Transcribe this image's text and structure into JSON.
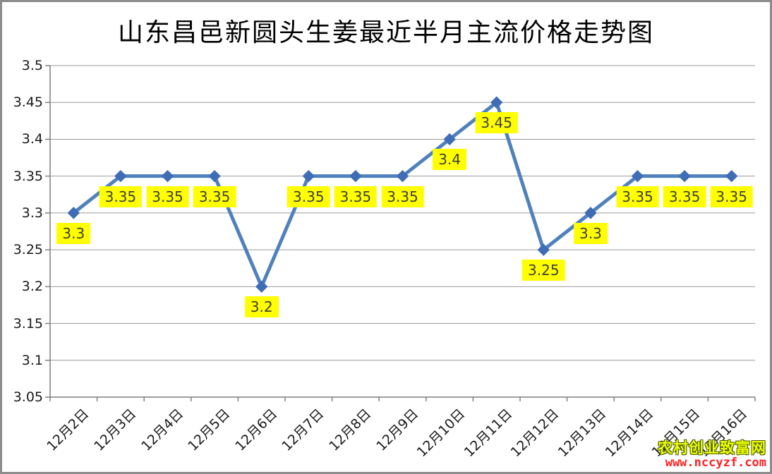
{
  "chart_data": {
    "type": "line",
    "title": "山东昌邑新圆头生姜最近半月主流价格走势图",
    "categories": [
      "12月2日",
      "12月3日",
      "12月4日",
      "12月5日",
      "12月6日",
      "12月7日",
      "12月8日",
      "12月9日",
      "12月10日",
      "12月11日",
      "12月12日",
      "12月13日",
      "12月14日",
      "12月15日",
      "12月16日"
    ],
    "values": [
      3.3,
      3.35,
      3.35,
      3.35,
      3.2,
      3.35,
      3.35,
      3.35,
      3.4,
      3.45,
      3.25,
      3.3,
      3.35,
      3.35,
      3.35
    ],
    "data_labels": [
      "3.3",
      "3.35",
      "3.35",
      "3.35",
      "3.2",
      "3.35",
      "3.35",
      "3.35",
      "3.4",
      "3.45",
      "3.25",
      "3.3",
      "3.35",
      "3.35",
      "3.35"
    ],
    "xlabel": "",
    "ylabel": "",
    "ylim": [
      3.05,
      3.5
    ],
    "ytick_step": 0.05,
    "yticks": [
      "3.05",
      "3.1",
      "3.15",
      "3.2",
      "3.25",
      "3.3",
      "3.35",
      "3.4",
      "3.45",
      "3.5"
    ],
    "grid": true,
    "legend": "none",
    "marker_shape": "diamond",
    "colors": {
      "line": "#4F81BD",
      "marker": "#3F6DB5",
      "label_bg": "#FFFF00",
      "label_text": "#3F3F3F",
      "gridline": "#999999",
      "axis": "#7F7F7F"
    }
  },
  "watermark": {
    "site_name": "农村创业致富网",
    "site_url": "www.nccyzf.com",
    "site_name_color": "#EAFF00",
    "site_url_color": "#FF2222"
  }
}
